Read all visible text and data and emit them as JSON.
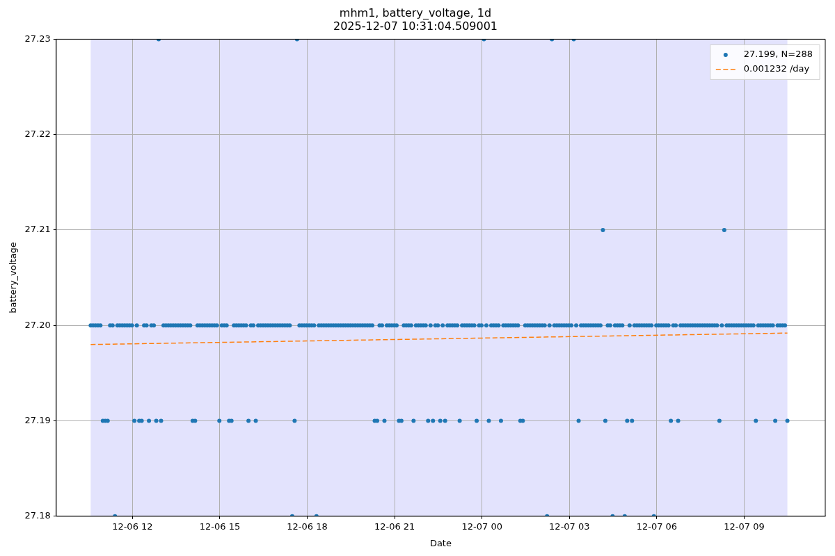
{
  "chart_data": {
    "type": "scatter",
    "title": "mhm1, battery_voltage, 1d",
    "subtitle": "2025-12-07 10:31:04.509001",
    "xlabel": "Date",
    "ylabel": "battery_voltage",
    "xlim": [
      "2025-12-06T09:23",
      "2025-12-07T11:47"
    ],
    "xticks": [
      {
        "value": "2025-12-06T12:00",
        "label": "12-06 12"
      },
      {
        "value": "2025-12-06T15:00",
        "label": "12-06 15"
      },
      {
        "value": "2025-12-06T18:00",
        "label": "12-06 18"
      },
      {
        "value": "2025-12-06T21:00",
        "label": "12-06 21"
      },
      {
        "value": "2025-12-07T00:00",
        "label": "12-07 00"
      },
      {
        "value": "2025-12-07T03:00",
        "label": "12-07 03"
      },
      {
        "value": "2025-12-07T06:00",
        "label": "12-07 06"
      },
      {
        "value": "2025-12-07T09:00",
        "label": "12-07 09"
      }
    ],
    "ylim": [
      27.18,
      27.23
    ],
    "yticks": [
      27.18,
      27.19,
      {
        "value": 27.2,
        "label": "27.20"
      },
      27.21,
      27.22,
      27.23
    ],
    "grid": true,
    "legend": "top right",
    "marker": "circle",
    "bands": [
      {
        "axis": "x",
        "from": "2025-12-06T10:34",
        "to": "2025-12-07T10:29",
        "color": "#e3e3fd"
      }
    ],
    "x": [
      "2025-12-06T10:34",
      "2025-12-06T10:39",
      "2025-12-06T10:44",
      "2025-12-06T10:49",
      "2025-12-06T10:54",
      "2025-12-06T10:59",
      "2025-12-06T11:04",
      "2025-12-06T11:09",
      "2025-12-06T11:14",
      "2025-12-06T11:19",
      "2025-12-06T11:24",
      "2025-12-06T11:29",
      "2025-12-06T11:34",
      "2025-12-06T11:39",
      "2025-12-06T11:44",
      "2025-12-06T11:49",
      "2025-12-06T11:54",
      "2025-12-06T11:59",
      "2025-12-06T12:04",
      "2025-12-06T12:09",
      "2025-12-06T12:14",
      "2025-12-06T12:19",
      "2025-12-06T12:24",
      "2025-12-06T12:29",
      "2025-12-06T12:34",
      "2025-12-06T12:39",
      "2025-12-06T12:44",
      "2025-12-06T12:49",
      "2025-12-06T12:54",
      "2025-12-06T12:59",
      "2025-12-06T13:04",
      "2025-12-06T13:09",
      "2025-12-06T13:14",
      "2025-12-06T13:19",
      "2025-12-06T13:24",
      "2025-12-06T13:29",
      "2025-12-06T13:34",
      "2025-12-06T13:39",
      "2025-12-06T13:44",
      "2025-12-06T13:49",
      "2025-12-06T13:54",
      "2025-12-06T13:59",
      "2025-12-06T14:04",
      "2025-12-06T14:09",
      "2025-12-06T14:14",
      "2025-12-06T14:19",
      "2025-12-06T14:24",
      "2025-12-06T14:29",
      "2025-12-06T14:34",
      "2025-12-06T14:39",
      "2025-12-06T14:44",
      "2025-12-06T14:49",
      "2025-12-06T14:54",
      "2025-12-06T14:59",
      "2025-12-06T15:04",
      "2025-12-06T15:09",
      "2025-12-06T15:14",
      "2025-12-06T15:19",
      "2025-12-06T15:24",
      "2025-12-06T15:29",
      "2025-12-06T15:34",
      "2025-12-06T15:39",
      "2025-12-06T15:44",
      "2025-12-06T15:49",
      "2025-12-06T15:54",
      "2025-12-06T15:59",
      "2025-12-06T16:04",
      "2025-12-06T16:09",
      "2025-12-06T16:14",
      "2025-12-06T16:19",
      "2025-12-06T16:24",
      "2025-12-06T16:29",
      "2025-12-06T16:34",
      "2025-12-06T16:39",
      "2025-12-06T16:44",
      "2025-12-06T16:49",
      "2025-12-06T16:54",
      "2025-12-06T16:59",
      "2025-12-06T17:04",
      "2025-12-06T17:09",
      "2025-12-06T17:14",
      "2025-12-06T17:19",
      "2025-12-06T17:24",
      "2025-12-06T17:29",
      "2025-12-06T17:34",
      "2025-12-06T17:39",
      "2025-12-06T17:44",
      "2025-12-06T17:49",
      "2025-12-06T17:54",
      "2025-12-06T17:59",
      "2025-12-06T18:04",
      "2025-12-06T18:09",
      "2025-12-06T18:14",
      "2025-12-06T18:19",
      "2025-12-06T18:24",
      "2025-12-06T18:29",
      "2025-12-06T18:34",
      "2025-12-06T18:39",
      "2025-12-06T18:44",
      "2025-12-06T18:49",
      "2025-12-06T18:54",
      "2025-12-06T18:59",
      "2025-12-06T19:04",
      "2025-12-06T19:09",
      "2025-12-06T19:14",
      "2025-12-06T19:19",
      "2025-12-06T19:24",
      "2025-12-06T19:29",
      "2025-12-06T19:34",
      "2025-12-06T19:39",
      "2025-12-06T19:44",
      "2025-12-06T19:49",
      "2025-12-06T19:54",
      "2025-12-06T19:59",
      "2025-12-06T20:04",
      "2025-12-06T20:09",
      "2025-12-06T20:14",
      "2025-12-06T20:19",
      "2025-12-06T20:24",
      "2025-12-06T20:29",
      "2025-12-06T20:34",
      "2025-12-06T20:39",
      "2025-12-06T20:44",
      "2025-12-06T20:49",
      "2025-12-06T20:54",
      "2025-12-06T20:59",
      "2025-12-06T21:04",
      "2025-12-06T21:09",
      "2025-12-06T21:14",
      "2025-12-06T21:19",
      "2025-12-06T21:24",
      "2025-12-06T21:29",
      "2025-12-06T21:34",
      "2025-12-06T21:39",
      "2025-12-06T21:44",
      "2025-12-06T21:49",
      "2025-12-06T21:54",
      "2025-12-06T21:59",
      "2025-12-06T22:04",
      "2025-12-06T22:09",
      "2025-12-06T22:14",
      "2025-12-06T22:19",
      "2025-12-06T22:24",
      "2025-12-06T22:29",
      "2025-12-06T22:34",
      "2025-12-06T22:39",
      "2025-12-06T22:44",
      "2025-12-06T22:49",
      "2025-12-06T22:54",
      "2025-12-06T22:59",
      "2025-12-06T23:04",
      "2025-12-06T23:09",
      "2025-12-06T23:14",
      "2025-12-06T23:19",
      "2025-12-06T23:24",
      "2025-12-06T23:29",
      "2025-12-06T23:34",
      "2025-12-06T23:39",
      "2025-12-06T23:44",
      "2025-12-06T23:49",
      "2025-12-06T23:54",
      "2025-12-06T23:59",
      "2025-12-07T00:04",
      "2025-12-07T00:09",
      "2025-12-07T00:14",
      "2025-12-07T00:19",
      "2025-12-07T00:24",
      "2025-12-07T00:29",
      "2025-12-07T00:34",
      "2025-12-07T00:39",
      "2025-12-07T00:44",
      "2025-12-07T00:49",
      "2025-12-07T00:54",
      "2025-12-07T00:59",
      "2025-12-07T01:04",
      "2025-12-07T01:09",
      "2025-12-07T01:14",
      "2025-12-07T01:19",
      "2025-12-07T01:24",
      "2025-12-07T01:29",
      "2025-12-07T01:34",
      "2025-12-07T01:39",
      "2025-12-07T01:44",
      "2025-12-07T01:49",
      "2025-12-07T01:54",
      "2025-12-07T01:59",
      "2025-12-07T02:04",
      "2025-12-07T02:09",
      "2025-12-07T02:14",
      "2025-12-07T02:19",
      "2025-12-07T02:24",
      "2025-12-07T02:29",
      "2025-12-07T02:34",
      "2025-12-07T02:39",
      "2025-12-07T02:44",
      "2025-12-07T02:49",
      "2025-12-07T02:54",
      "2025-12-07T02:59",
      "2025-12-07T03:04",
      "2025-12-07T03:09",
      "2025-12-07T03:14",
      "2025-12-07T03:19",
      "2025-12-07T03:24",
      "2025-12-07T03:29",
      "2025-12-07T03:34",
      "2025-12-07T03:39",
      "2025-12-07T03:44",
      "2025-12-07T03:49",
      "2025-12-07T03:54",
      "2025-12-07T03:59",
      "2025-12-07T04:04",
      "2025-12-07T04:09",
      "2025-12-07T04:14",
      "2025-12-07T04:19",
      "2025-12-07T04:24",
      "2025-12-07T04:29",
      "2025-12-07T04:34",
      "2025-12-07T04:39",
      "2025-12-07T04:44",
      "2025-12-07T04:49",
      "2025-12-07T04:54",
      "2025-12-07T04:59",
      "2025-12-07T05:04",
      "2025-12-07T05:09",
      "2025-12-07T05:14",
      "2025-12-07T05:19",
      "2025-12-07T05:24",
      "2025-12-07T05:29",
      "2025-12-07T05:34",
      "2025-12-07T05:39",
      "2025-12-07T05:44",
      "2025-12-07T05:49",
      "2025-12-07T05:54",
      "2025-12-07T05:59",
      "2025-12-07T06:04",
      "2025-12-07T06:09",
      "2025-12-07T06:14",
      "2025-12-07T06:19",
      "2025-12-07T06:24",
      "2025-12-07T06:29",
      "2025-12-07T06:34",
      "2025-12-07T06:39",
      "2025-12-07T06:44",
      "2025-12-07T06:49",
      "2025-12-07T06:54",
      "2025-12-07T06:59",
      "2025-12-07T07:04",
      "2025-12-07T07:09",
      "2025-12-07T07:14",
      "2025-12-07T07:19",
      "2025-12-07T07:24",
      "2025-12-07T07:29",
      "2025-12-07T07:34",
      "2025-12-07T07:39",
      "2025-12-07T07:44",
      "2025-12-07T07:49",
      "2025-12-07T07:54",
      "2025-12-07T07:59",
      "2025-12-07T08:04",
      "2025-12-07T08:09",
      "2025-12-07T08:14",
      "2025-12-07T08:19",
      "2025-12-07T08:24",
      "2025-12-07T08:29",
      "2025-12-07T08:34",
      "2025-12-07T08:39",
      "2025-12-07T08:44",
      "2025-12-07T08:49",
      "2025-12-07T08:54",
      "2025-12-07T08:59",
      "2025-12-07T09:04",
      "2025-12-07T09:09",
      "2025-12-07T09:14",
      "2025-12-07T09:19",
      "2025-12-07T09:24",
      "2025-12-07T09:29",
      "2025-12-07T09:34",
      "2025-12-07T09:39",
      "2025-12-07T09:44",
      "2025-12-07T09:49",
      "2025-12-07T09:54",
      "2025-12-07T09:59",
      "2025-12-07T10:04",
      "2025-12-07T10:09",
      "2025-12-07T10:14",
      "2025-12-07T10:19",
      "2025-12-07T10:24",
      "2025-12-07T10:29"
    ],
    "series": [
      {
        "name": "27.199, N=288",
        "type": "scatter",
        "color": "#1f77b4",
        "values": [
          27.2,
          27.2,
          27.2,
          27.2,
          27.2,
          27.19,
          27.19,
          27.19,
          27.2,
          27.2,
          27.18,
          27.2,
          27.2,
          27.2,
          27.2,
          27.2,
          27.2,
          27.2,
          27.19,
          27.2,
          27.19,
          27.19,
          27.2,
          27.2,
          27.19,
          27.2,
          27.2,
          27.19,
          27.23,
          27.19,
          27.2,
          27.2,
          27.2,
          27.2,
          27.2,
          27.2,
          27.2,
          27.2,
          27.2,
          27.2,
          27.2,
          27.2,
          27.19,
          27.19,
          27.2,
          27.2,
          27.2,
          27.2,
          27.2,
          27.2,
          27.2,
          27.2,
          27.2,
          27.19,
          27.2,
          27.2,
          27.2,
          27.19,
          27.19,
          27.2,
          27.2,
          27.2,
          27.2,
          27.2,
          27.2,
          27.19,
          27.2,
          27.2,
          27.19,
          27.2,
          27.2,
          27.2,
          27.2,
          27.2,
          27.2,
          27.2,
          27.2,
          27.2,
          27.2,
          27.2,
          27.2,
          27.2,
          27.2,
          27.18,
          27.19,
          27.23,
          27.2,
          27.2,
          27.2,
          27.2,
          27.2,
          27.2,
          27.2,
          27.18,
          27.2,
          27.2,
          27.2,
          27.2,
          27.2,
          27.2,
          27.2,
          27.2,
          27.2,
          27.2,
          27.2,
          27.2,
          27.2,
          27.2,
          27.2,
          27.2,
          27.2,
          27.2,
          27.2,
          27.2,
          27.2,
          27.2,
          27.2,
          27.19,
          27.19,
          27.2,
          27.2,
          27.19,
          27.2,
          27.2,
          27.2,
          27.2,
          27.2,
          27.19,
          27.19,
          27.2,
          27.2,
          27.2,
          27.2,
          27.19,
          27.2,
          27.2,
          27.2,
          27.2,
          27.2,
          27.19,
          27.2,
          27.19,
          27.2,
          27.2,
          27.19,
          27.2,
          27.19,
          27.2,
          27.2,
          27.2,
          27.2,
          27.2,
          27.19,
          27.2,
          27.2,
          27.2,
          27.2,
          27.2,
          27.2,
          27.19,
          27.2,
          27.2,
          27.23,
          27.2,
          27.19,
          27.2,
          27.2,
          27.2,
          27.2,
          27.19,
          27.2,
          27.2,
          27.2,
          27.2,
          27.2,
          27.2,
          27.2,
          27.19,
          27.19,
          27.2,
          27.2,
          27.2,
          27.2,
          27.2,
          27.2,
          27.2,
          27.2,
          27.2,
          27.18,
          27.2,
          27.23,
          27.2,
          27.2,
          27.2,
          27.2,
          27.2,
          27.2,
          27.2,
          27.2,
          27.23,
          27.2,
          27.19,
          27.2,
          27.2,
          27.2,
          27.2,
          27.2,
          27.2,
          27.2,
          27.2,
          27.2,
          27.21,
          27.19,
          27.2,
          27.2,
          27.18,
          27.2,
          27.2,
          27.2,
          27.2,
          27.18,
          27.19,
          27.2,
          27.19,
          27.2,
          27.2,
          27.2,
          27.2,
          27.2,
          27.2,
          27.2,
          27.2,
          27.18,
          27.2,
          27.2,
          27.2,
          27.2,
          27.2,
          27.2,
          27.19,
          27.2,
          27.2,
          27.19,
          27.2,
          27.2,
          27.2,
          27.2,
          27.2,
          27.2,
          27.2,
          27.2,
          27.2,
          27.2,
          27.2,
          27.2,
          27.2,
          27.2,
          27.2,
          27.2,
          27.19,
          27.2,
          27.21,
          27.2,
          27.2,
          27.2,
          27.2,
          27.2,
          27.2,
          27.2,
          27.2,
          27.2,
          27.2,
          27.2,
          27.2,
          27.19,
          27.2,
          27.2,
          27.2,
          27.2,
          27.2,
          27.2,
          27.2,
          27.19,
          27.2,
          27.2,
          27.2,
          27.2,
          27.19
        ]
      },
      {
        "name": "0.001232 /day",
        "type": "line",
        "color": "#ff7f0e",
        "marker": "none",
        "line_style": "dashed",
        "x": [
          "2025-12-06T10:34",
          "2025-12-07T10:29"
        ],
        "values": [
          27.198,
          27.1992
        ]
      }
    ]
  }
}
